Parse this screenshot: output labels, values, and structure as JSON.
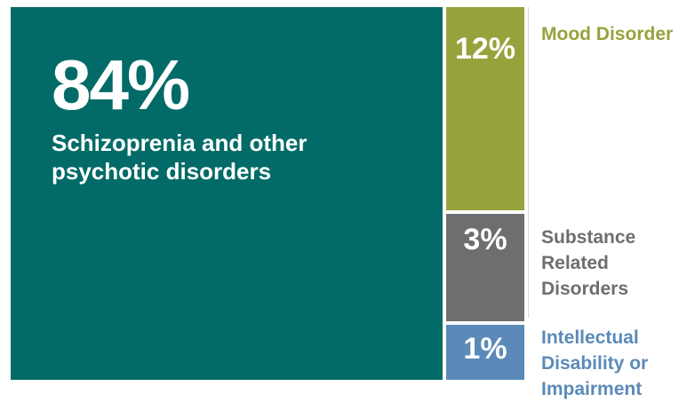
{
  "chart_data": {
    "type": "treemap",
    "title": "",
    "categories": [
      "Schizoprenia and other psychotic disorders",
      "Mood Disorder",
      "Substance Related Disorders",
      "Intellectual Disability or Impairment"
    ],
    "values": [
      84,
      12,
      3,
      1
    ],
    "value_labels": [
      "84%",
      "12%",
      "3%",
      "1%"
    ],
    "colors": [
      "#036b67",
      "#98a23c",
      "#6c6e70",
      "#5b8ab8"
    ],
    "label_colors": [
      "#ffffff",
      "#98a23c",
      "#6c6e70",
      "#5b8ab8"
    ]
  }
}
